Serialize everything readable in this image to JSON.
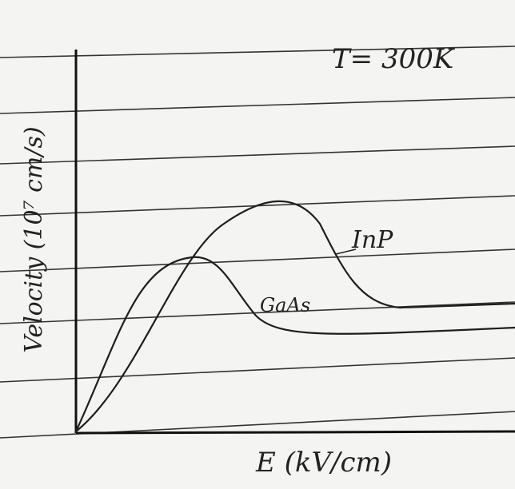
{
  "labels": {
    "temperature": "T= 300K",
    "y_axis": "Velocity (10⁷ cm/s)",
    "x_axis": "E (kV/cm)",
    "curves": [
      "InP",
      "GaAs"
    ]
  }
}
